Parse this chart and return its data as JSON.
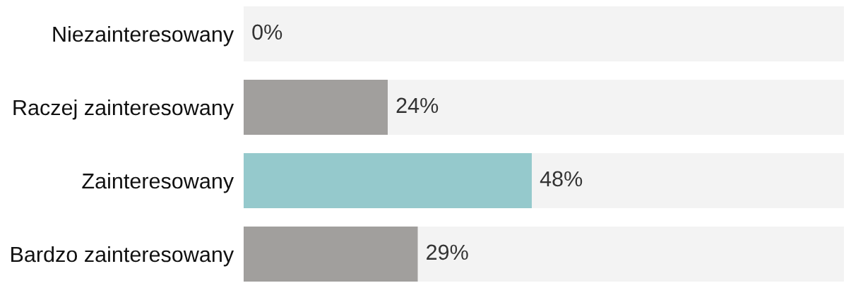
{
  "chart_data": {
    "type": "bar",
    "orientation": "horizontal",
    "categories": [
      "Niezainteresowany",
      "Raczej zainteresowany",
      "Zainteresowany",
      "Bardzo zainteresowany"
    ],
    "values": [
      0,
      24,
      48,
      29
    ],
    "colors": [
      "#a19f9d",
      "#a19f9d",
      "#95c9cc",
      "#a19f9d"
    ],
    "value_labels": [
      "0%",
      "24%",
      "48%",
      "29%"
    ],
    "bands": [
      {
        "axis": "x",
        "from": 0,
        "to": 100,
        "color": "#f3f3f3"
      }
    ],
    "xlim": [
      0,
      100
    ],
    "tick_labels": "y"
  }
}
